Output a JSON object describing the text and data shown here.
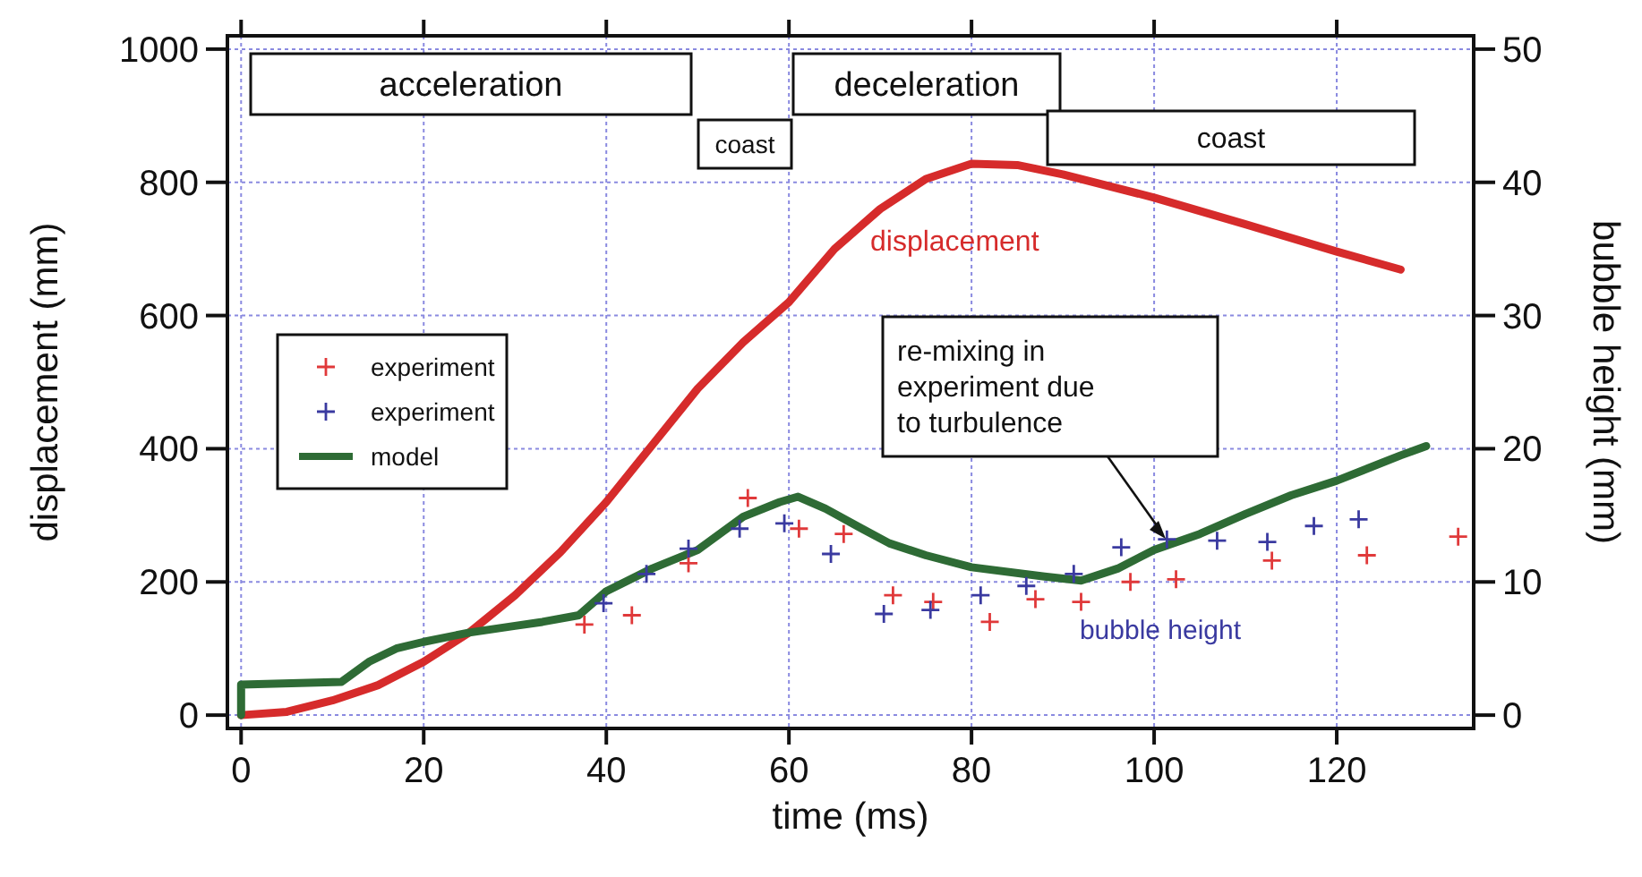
{
  "chart_data": {
    "type": "line",
    "xlabel": "time (ms)",
    "ylabel": "displacement (mm)",
    "y2label": "bubble height (mm)",
    "xlim": [
      -1.5,
      135
    ],
    "xticks": [
      0,
      20,
      40,
      60,
      80,
      100,
      120
    ],
    "ylim": [
      -20,
      1020
    ],
    "yticks": [
      0,
      200,
      400,
      600,
      800,
      1000
    ],
    "y2lim": [
      -1,
      51
    ],
    "y2ticks": [
      0,
      10,
      20,
      30,
      40,
      50
    ],
    "grid": true,
    "legend": "left",
    "line_style": "solid",
    "series": [
      {
        "name": "displacement",
        "axis": "y",
        "color": "#d62b2b",
        "x": [
          0,
          5,
          10,
          15,
          20,
          25,
          30,
          35,
          40,
          45,
          50,
          55,
          60,
          65,
          70,
          75,
          80,
          85,
          90,
          100,
          110,
          120,
          127
        ],
        "values": [
          0,
          5,
          22,
          45,
          80,
          124,
          180,
          245,
          320,
          405,
          490,
          560,
          620,
          700,
          760,
          805,
          828,
          826,
          812,
          777,
          737,
          696,
          669
        ]
      },
      {
        "name": "experiment",
        "type": "scatter",
        "axis": "y2",
        "marker": "cross",
        "color": "#e0393a",
        "x": [
          37.6,
          42.8,
          49,
          55.5,
          61.1,
          66,
          71.4,
          75.8,
          82,
          87,
          92,
          97.4,
          102.4,
          112.9,
          123.3,
          133.3
        ],
        "values": [
          6.8,
          7.5,
          11.4,
          16.3,
          14,
          13.6,
          9,
          8.5,
          7,
          8.7,
          8.5,
          10,
          10.2,
          11.6,
          12,
          13.4
        ]
      },
      {
        "name": "experiment",
        "type": "scatter",
        "axis": "y2",
        "marker": "cross",
        "color": "#3a3aa0",
        "x": [
          39.7,
          44.4,
          49,
          54.6,
          59.5,
          64.6,
          70.4,
          75.5,
          81,
          86,
          91.2,
          96.4,
          101.4,
          106.9,
          112.4,
          117.5,
          122.4
        ],
        "values": [
          8.4,
          10.6,
          12.5,
          14,
          14.4,
          12.1,
          7.6,
          7.9,
          9,
          9.7,
          10.6,
          12.6,
          13.2,
          13.1,
          13,
          14.2,
          14.7
        ]
      },
      {
        "name": "model",
        "axis": "y2",
        "color": "#2e6b35",
        "x": [
          0,
          0,
          11,
          14,
          17,
          20,
          25,
          30,
          33,
          37,
          40,
          45,
          50,
          55,
          59,
          61,
          64,
          68,
          71,
          75,
          80,
          88,
          92,
          96,
          100,
          105,
          110,
          115,
          120,
          127,
          129.8
        ],
        "values": [
          0,
          2.3,
          2.5,
          4,
          5,
          5.5,
          6.2,
          6.7,
          7,
          7.5,
          9.3,
          11,
          12.4,
          14.9,
          16,
          16.4,
          15.5,
          14,
          12.9,
          12,
          11.1,
          10.4,
          10.1,
          11,
          12.4,
          13.6,
          15.1,
          16.5,
          17.6,
          19.5,
          20.2
        ]
      }
    ],
    "annotations": [
      "acceleration",
      "coast",
      "deceleration",
      "coast",
      "bubble height",
      "re-mixing in\nexperiment due\nto turbulence"
    ]
  }
}
